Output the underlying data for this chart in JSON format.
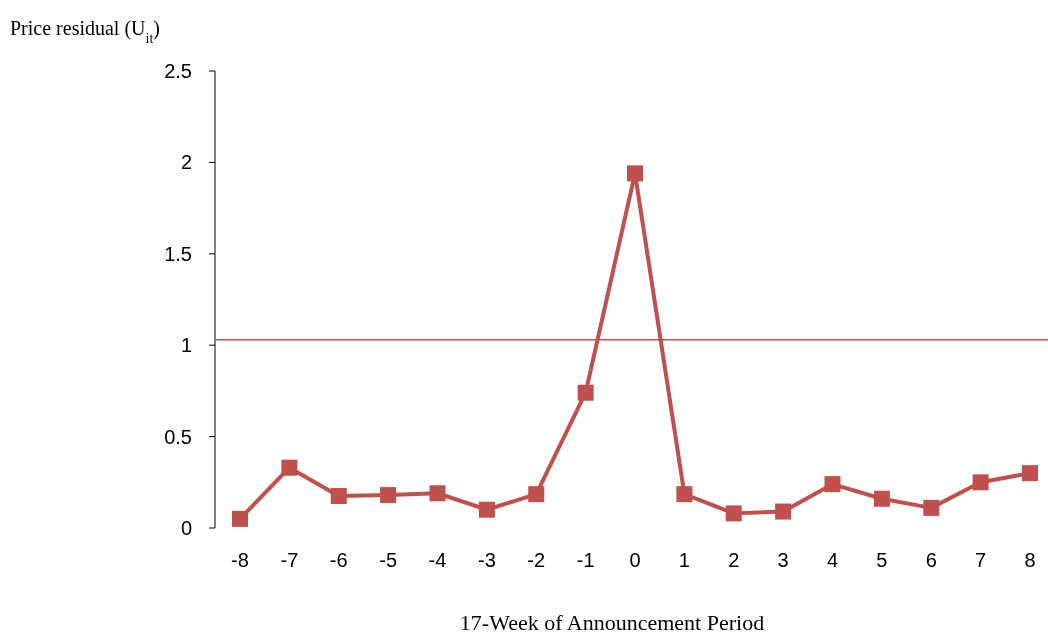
{
  "chart_data": {
    "type": "line",
    "ylabel": "Price residual (U$_{it}$)",
    "xlabel": "17-Week of Announcement Period",
    "categories": [
      "-8",
      "-7",
      "-6",
      "-5",
      "-4",
      "-3",
      "-2",
      "-1",
      "0",
      "1",
      "2",
      "3",
      "4",
      "5",
      "6",
      "7",
      "8"
    ],
    "series": [
      {
        "color": "#c0504d",
        "values": [
          0.05,
          0.33,
          0.175,
          0.18,
          0.19,
          0.1,
          0.185,
          0.74,
          1.94,
          0.185,
          0.08,
          0.09,
          0.24,
          0.16,
          0.11,
          0.25,
          0.3
        ]
      }
    ],
    "ylim": [
      0,
      2.5
    ],
    "yticks": [
      0,
      0.5,
      1,
      1.5,
      2,
      2.5
    ],
    "marker": "square",
    "line_style": "solid",
    "ref_lines": [
      {
        "axis": "y",
        "value": 1.03,
        "color": "#c0504d"
      }
    ]
  }
}
